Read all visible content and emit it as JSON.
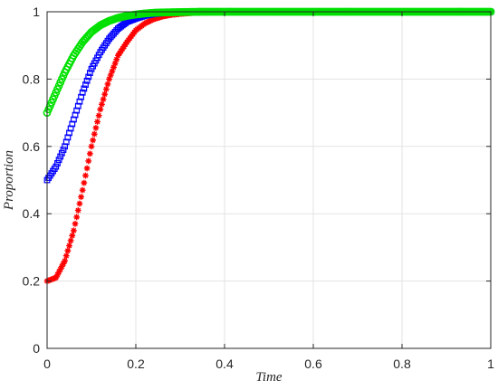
{
  "chart_data": {
    "type": "scatter",
    "title": "",
    "xlabel": "Time",
    "ylabel": "Proportion",
    "xlim": [
      0,
      1
    ],
    "ylim": [
      0,
      1
    ],
    "grid": true,
    "x_ticks": [
      "0",
      "0.2",
      "0.4",
      "0.6",
      "0.8",
      "1"
    ],
    "y_ticks": [
      "0",
      "0.2",
      "0.4",
      "0.6",
      "0.8",
      "1"
    ],
    "series": [
      {
        "color": "#ff0000",
        "marker": "asterisk",
        "x": [
          0,
          0.02,
          0.04,
          0.06,
          0.08,
          0.1,
          0.12,
          0.14,
          0.16,
          0.18,
          0.2,
          0.22,
          0.24,
          0.26,
          0.28,
          0.3,
          0.33,
          0.36,
          0.4,
          0.45,
          0.5,
          0.6,
          0.7,
          0.8,
          0.9,
          1.0
        ],
        "y": [
          0.2,
          0.21,
          0.26,
          0.35,
          0.47,
          0.6,
          0.71,
          0.8,
          0.87,
          0.91,
          0.945,
          0.965,
          0.978,
          0.986,
          0.991,
          0.994,
          0.997,
          0.998,
          0.999,
          1.0,
          1.0,
          1.0,
          1.0,
          1.0,
          1.0,
          1.0
        ]
      },
      {
        "color": "#0000ff",
        "marker": "square",
        "x": [
          0,
          0.02,
          0.04,
          0.06,
          0.08,
          0.1,
          0.12,
          0.14,
          0.16,
          0.18,
          0.2,
          0.22,
          0.24,
          0.26,
          0.3,
          0.35,
          0.4,
          0.5,
          0.6,
          0.7,
          0.8,
          0.9,
          1.0
        ],
        "y": [
          0.5,
          0.54,
          0.6,
          0.68,
          0.76,
          0.83,
          0.88,
          0.92,
          0.95,
          0.97,
          0.98,
          0.988,
          0.993,
          0.996,
          0.999,
          1.0,
          1.0,
          1.0,
          1.0,
          1.0,
          1.0,
          1.0,
          1.0
        ]
      },
      {
        "color": "#00e000",
        "marker": "circle",
        "x": [
          0,
          0.02,
          0.04,
          0.06,
          0.08,
          0.1,
          0.12,
          0.14,
          0.16,
          0.18,
          0.2,
          0.22,
          0.24,
          0.26,
          0.3,
          0.35,
          0.4,
          0.5,
          0.6,
          0.7,
          0.8,
          0.9,
          1.0
        ],
        "y": [
          0.7,
          0.76,
          0.82,
          0.87,
          0.91,
          0.94,
          0.96,
          0.973,
          0.982,
          0.988,
          0.992,
          0.995,
          0.997,
          0.998,
          0.999,
          1.0,
          1.0,
          1.0,
          1.0,
          1.0,
          1.0,
          1.0,
          1.0
        ]
      }
    ]
  }
}
